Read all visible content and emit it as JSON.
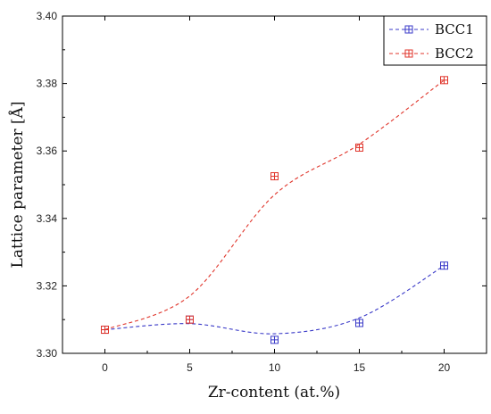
{
  "chart_data": {
    "type": "scatter",
    "xlabel": "Zr-content (at.%)",
    "ylabel": "Lattice parameter [Å]",
    "xlim": [
      -2.5,
      22.5
    ],
    "ylim": [
      3.3,
      3.4
    ],
    "xticks": [
      0,
      5,
      10,
      15,
      20
    ],
    "yticks": [
      3.3,
      3.32,
      3.34,
      3.36,
      3.38,
      3.4
    ],
    "ytick_labels": [
      "3.30",
      "3.32",
      "3.34",
      "3.36",
      "3.38",
      "3.40"
    ],
    "grid": false,
    "legend_position": "top-right",
    "series": [
      {
        "name": "BCC1",
        "color": "#3a3ac8",
        "marker": "square-cross",
        "line": "dashed-smooth-fit",
        "x": [
          0,
          5,
          10,
          15,
          20
        ],
        "y": [
          3.307,
          3.31,
          3.304,
          3.309,
          3.326
        ],
        "fit_y": [
          3.307,
          3.3088,
          3.3058,
          3.3105,
          3.326
        ]
      },
      {
        "name": "BCC2",
        "color": "#e0352b",
        "marker": "square-cross",
        "line": "dashed-smooth-fit",
        "x": [
          0,
          5,
          10,
          15,
          20
        ],
        "y": [
          3.307,
          3.31,
          3.3525,
          3.361,
          3.381
        ],
        "fit_y": [
          3.307,
          3.317,
          3.347,
          3.362,
          3.381
        ]
      }
    ]
  }
}
